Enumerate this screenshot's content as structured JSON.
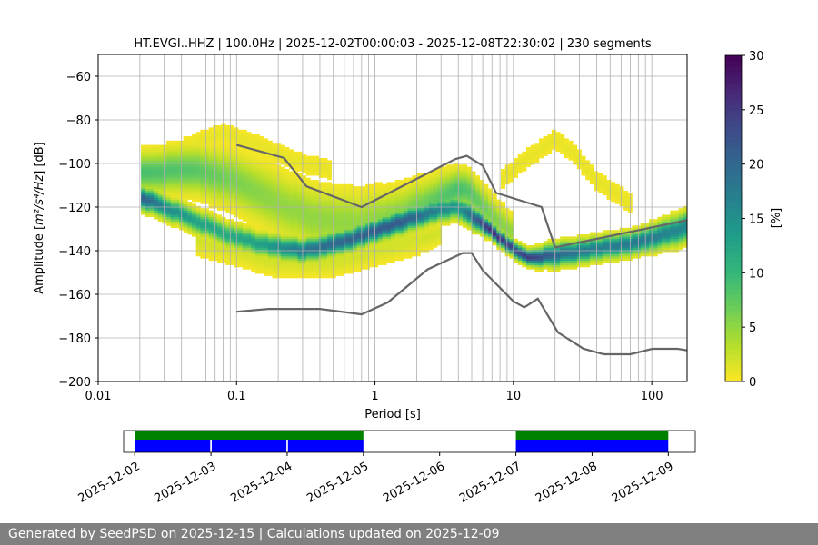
{
  "chart_data": {
    "type": "heatmap",
    "title": "HT.EVGI..HHZ | 100.0Hz | 2025-12-02T00:00:03 - 2025-12-08T22:30:02 | 230 segments",
    "xlabel": "Period [s]",
    "ylabel_prefix": "Amplitude [",
    "ylabel_math": "m²/s⁴/Hz",
    "ylabel_suffix": "] [dB]",
    "xscale": "log",
    "xlim": [
      0.01,
      180
    ],
    "ylim": [
      -200,
      -50
    ],
    "xticks": [
      {
        "value": 0.01,
        "label": "0.01"
      },
      {
        "value": 0.1,
        "label": "0.1"
      },
      {
        "value": 1,
        "label": "1"
      },
      {
        "value": 10,
        "label": "10"
      },
      {
        "value": 100,
        "label": "100"
      }
    ],
    "yticks": [
      -200,
      -180,
      -160,
      -140,
      -120,
      -100,
      -80,
      -60
    ],
    "grid": true,
    "colorbar": {
      "label": "[%]",
      "range": [
        0,
        30
      ],
      "ticks": [
        0,
        5,
        10,
        15,
        20,
        25,
        30
      ],
      "colormap": "viridis_r"
    },
    "density_ridges": [
      {
        "name": "main_mode",
        "points": [
          [
            0.02,
            -115
          ],
          [
            0.03,
            -120
          ],
          [
            0.05,
            -126
          ],
          [
            0.08,
            -132
          ],
          [
            0.15,
            -137
          ],
          [
            0.3,
            -140
          ],
          [
            0.5,
            -137
          ],
          [
            0.8,
            -133
          ],
          [
            1.5,
            -127
          ],
          [
            3,
            -121
          ],
          [
            4,
            -120
          ],
          [
            5,
            -124
          ],
          [
            7,
            -131
          ],
          [
            10,
            -139
          ],
          [
            13,
            -143
          ],
          [
            20,
            -142
          ],
          [
            40,
            -139
          ],
          [
            80,
            -136
          ],
          [
            180,
            -129
          ]
        ],
        "width": [
          3,
          3,
          3,
          3,
          3,
          3,
          3,
          3,
          3,
          3,
          3,
          3,
          2,
          2,
          2,
          3,
          3,
          3,
          4
        ],
        "peak": [
          22,
          16,
          13,
          12,
          13,
          18,
          20,
          21,
          22,
          16,
          14,
          20,
          27,
          24,
          25,
          20,
          17,
          18,
          16
        ]
      },
      {
        "name": "upper_mode",
        "points": [
          [
            0.02,
            -104
          ],
          [
            0.05,
            -103
          ],
          [
            0.1,
            -108
          ],
          [
            0.2,
            -118
          ],
          [
            0.4,
            -126
          ],
          [
            0.8,
            -128
          ],
          [
            1.5,
            -124
          ],
          [
            3,
            -116
          ],
          [
            4,
            -111
          ],
          [
            5,
            -114
          ],
          [
            7,
            -124
          ],
          [
            10,
            -132
          ]
        ],
        "width": [
          5,
          6,
          7,
          8,
          8,
          8,
          7,
          6,
          5,
          5,
          5,
          4
        ],
        "peak": [
          9,
          8,
          6,
          5,
          5,
          5,
          6,
          8,
          9,
          8,
          6,
          5
        ]
      },
      {
        "name": "low_scatter",
        "points": [
          [
            0.05,
            -135
          ],
          [
            0.2,
            -145
          ],
          [
            0.5,
            -145
          ],
          [
            1,
            -140
          ],
          [
            2,
            -135
          ],
          [
            3,
            -132
          ]
        ],
        "width": [
          4,
          4,
          4,
          4,
          4,
          3
        ],
        "peak": [
          2,
          2,
          2,
          2,
          2,
          2
        ]
      },
      {
        "name": "longperiod_arc",
        "points": [
          [
            8,
            -108
          ],
          [
            13,
            -97
          ],
          [
            20,
            -89
          ],
          [
            28,
            -96
          ],
          [
            40,
            -108
          ],
          [
            70,
            -118
          ]
        ],
        "width": [
          3,
          3,
          3,
          3,
          3,
          3
        ],
        "peak": [
          1,
          1,
          1,
          1,
          1,
          1
        ]
      },
      {
        "name": "shortperiod_arc",
        "points": [
          [
            0.04,
            -93
          ],
          [
            0.08,
            -86
          ],
          [
            0.15,
            -92
          ],
          [
            0.3,
            -100
          ],
          [
            0.5,
            -103
          ]
        ],
        "width": [
          3,
          3,
          3,
          3,
          3
        ],
        "peak": [
          1,
          1,
          1,
          1,
          1
        ]
      }
    ],
    "series": [
      {
        "name": "NHNM",
        "color": "#666666",
        "points": [
          [
            0.1,
            -91.5
          ],
          [
            0.22,
            -97.4
          ],
          [
            0.32,
            -110.5
          ],
          [
            0.8,
            -120
          ],
          [
            3.8,
            -98
          ],
          [
            4.6,
            -96.5
          ],
          [
            6,
            -101
          ],
          [
            7.5,
            -113.5
          ],
          [
            16,
            -120
          ],
          [
            20,
            -138.5
          ],
          [
            180,
            -126
          ]
        ]
      },
      {
        "name": "NLNM",
        "color": "#666666",
        "points": [
          [
            0.1,
            -168
          ],
          [
            0.17,
            -166.7
          ],
          [
            0.4,
            -166.7
          ],
          [
            0.8,
            -169.2
          ],
          [
            1.24,
            -163.7
          ],
          [
            2.4,
            -148.6
          ],
          [
            4.3,
            -141.1
          ],
          [
            5,
            -141.1
          ],
          [
            6,
            -149
          ],
          [
            10,
            -163.2
          ],
          [
            12,
            -166
          ],
          [
            15,
            -162
          ],
          [
            21,
            -177.5
          ],
          [
            32,
            -184.9
          ],
          [
            45,
            -187.5
          ],
          [
            70,
            -187.5
          ],
          [
            101,
            -185
          ],
          [
            154,
            -185
          ],
          [
            180,
            -185.7
          ]
        ]
      }
    ]
  },
  "availability": {
    "xlim": [
      "2025-12-01T20:30",
      "2025-12-09T08:30"
    ],
    "tick_labels": [
      "2025-12-02",
      "2025-12-03",
      "2025-12-04",
      "2025-12-05",
      "2025-12-06",
      "2025-12-07",
      "2025-12-08",
      "2025-12-09"
    ],
    "tick_days": [
      0,
      1,
      2,
      3,
      4,
      5,
      6,
      7
    ],
    "top_color": "#008000",
    "bottom_color": "#0000ff",
    "top_spans": [
      [
        0.0,
        3.0
      ],
      [
        5.0,
        7.0
      ]
    ],
    "bottom_spans": [
      [
        0.0,
        0.99
      ],
      [
        1.01,
        1.99
      ],
      [
        2.01,
        3.0
      ],
      [
        5.0,
        7.0
      ]
    ]
  },
  "footer": {
    "text": "Generated by SeedPSD on 2025-12-15 | Calculations updated on 2025-12-09"
  }
}
